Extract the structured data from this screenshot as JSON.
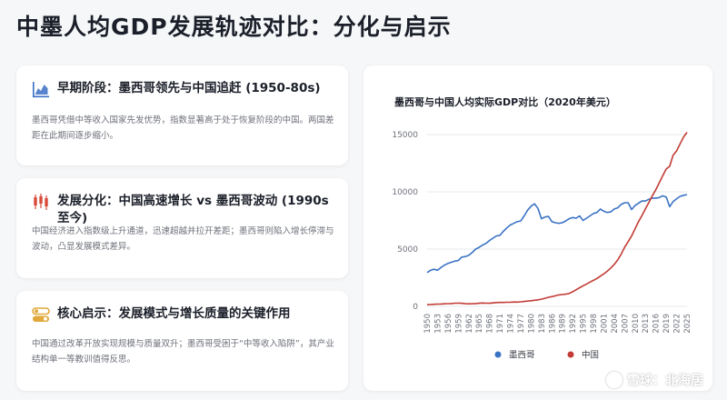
{
  "page": {
    "title": "中墨人均GDP发展轨迹对比：分化与启示"
  },
  "cards": [
    {
      "icon": "area-chart-icon",
      "title": "早期阶段：墨西哥领先与中国追赶 (1950-80s)",
      "body": "墨西哥凭借中等收入国家先发优势，指数显著高于处于恢复阶段的中国。两国差距在此期间逐步缩小。"
    },
    {
      "icon": "candlestick-icon",
      "title": "发展分化：中国高速增长 vs 墨西哥波动 (1990s至今)",
      "body": "中国经济进入指数级上升通道，迅速超越并拉开差距；墨西哥则陷入增长停滞与波动，凸显发展模式差异。"
    },
    {
      "icon": "toggle-icon",
      "title": "核心启示：发展模式与增长质量的关键作用",
      "body": "中国通过改革开放实现规模与质量双升；墨西哥受困于“中等收入陷阱”，其产业结构单一等教训值得反思。"
    }
  ],
  "watermark": {
    "text": "雪球：北海居"
  },
  "colors": {
    "mexico": "#3b73c4",
    "china": "#c23b35",
    "accent_icon": "#3b6fc5",
    "icon_red": "#d94a3a",
    "icon_gold": "#e0a93a"
  },
  "chart_data": {
    "type": "line",
    "title": "墨西哥与中国人均实际GDP对比（2020年美元）",
    "xlabel": "",
    "ylabel": "",
    "xlim": [
      1950,
      2025
    ],
    "ylim": [
      0,
      15000
    ],
    "yticks": [
      0,
      5000,
      10000,
      15000
    ],
    "xticks": [
      "1950",
      "1953",
      "1956",
      "1959",
      "1962",
      "1965",
      "1968",
      "1971",
      "1974",
      "1977",
      "1980",
      "1983",
      "1986",
      "1989",
      "1992",
      "1995",
      "1998",
      "2001",
      "2004",
      "2007",
      "2010",
      "2013",
      "2016",
      "2019",
      "2022",
      "2025"
    ],
    "grid": "horizontal",
    "legend": "bottom",
    "x": [
      1950,
      1951,
      1952,
      1953,
      1954,
      1955,
      1956,
      1957,
      1958,
      1959,
      1960,
      1961,
      1962,
      1963,
      1964,
      1965,
      1966,
      1967,
      1968,
      1969,
      1970,
      1971,
      1972,
      1973,
      1974,
      1975,
      1976,
      1977,
      1978,
      1979,
      1980,
      1981,
      1982,
      1983,
      1984,
      1985,
      1986,
      1987,
      1988,
      1989,
      1990,
      1991,
      1992,
      1993,
      1994,
      1995,
      1996,
      1997,
      1998,
      1999,
      2000,
      2001,
      2002,
      2003,
      2004,
      2005,
      2006,
      2007,
      2008,
      2009,
      2010,
      2011,
      2012,
      2013,
      2014,
      2015,
      2016,
      2017,
      2018,
      2019,
      2020,
      2021,
      2022,
      2023,
      2024,
      2025
    ],
    "series": [
      {
        "name": "墨西哥",
        "color": "#3b73c4",
        "values": [
          2950,
          3150,
          3250,
          3150,
          3400,
          3600,
          3750,
          3850,
          3950,
          4000,
          4300,
          4350,
          4450,
          4700,
          5000,
          5150,
          5350,
          5500,
          5750,
          5950,
          6150,
          6200,
          6550,
          6850,
          7100,
          7250,
          7400,
          7450,
          7900,
          8400,
          8750,
          8950,
          8550,
          7650,
          7800,
          7850,
          7400,
          7300,
          7250,
          7300,
          7450,
          7650,
          7750,
          7700,
          7900,
          7500,
          7700,
          7900,
          8100,
          8200,
          8500,
          8300,
          8200,
          8250,
          8500,
          8600,
          8900,
          9050,
          9050,
          8450,
          8800,
          9000,
          9200,
          9200,
          9350,
          9450,
          9450,
          9500,
          9650,
          9550,
          8700,
          9150,
          9400,
          9600,
          9700,
          9750
        ]
      },
      {
        "name": "中国",
        "color": "#c23b35",
        "values": [
          150,
          160,
          180,
          200,
          210,
          220,
          240,
          250,
          280,
          280,
          270,
          230,
          220,
          230,
          250,
          270,
          290,
          280,
          270,
          300,
          330,
          340,
          340,
          360,
          360,
          380,
          370,
          400,
          430,
          460,
          490,
          530,
          570,
          630,
          710,
          790,
          850,
          920,
          1000,
          1030,
          1060,
          1130,
          1280,
          1450,
          1630,
          1790,
          1950,
          2120,
          2270,
          2440,
          2640,
          2840,
          3070,
          3350,
          3660,
          4050,
          4550,
          5170,
          5640,
          6140,
          6770,
          7390,
          7930,
          8510,
          9080,
          9660,
          10190,
          10790,
          11410,
          11990,
          12220,
          13200,
          13580,
          14190,
          14780,
          15200
        ]
      }
    ]
  }
}
